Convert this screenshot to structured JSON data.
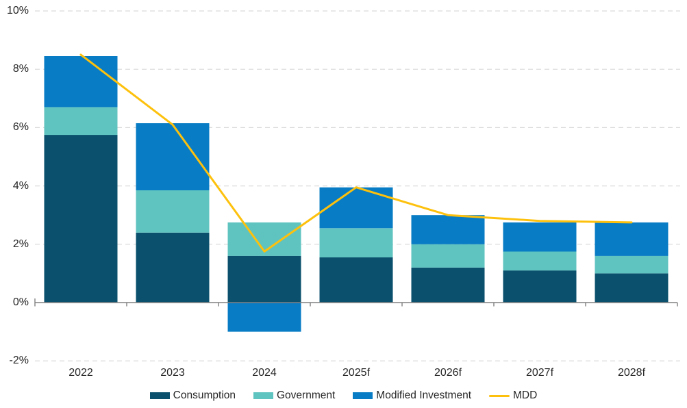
{
  "chart_data": {
    "type": "bar",
    "subtype": "stacked-bars-with-line-overlay",
    "title": "",
    "categories": [
      "2022",
      "2023",
      "2024",
      "2025f",
      "2026f",
      "2027f",
      "2028f"
    ],
    "series": [
      {
        "name": "Consumption",
        "type": "bar",
        "color": "#0B516D",
        "values": [
          5.75,
          2.4,
          1.6,
          1.55,
          1.2,
          1.1,
          1.0
        ]
      },
      {
        "name": "Government",
        "type": "bar",
        "color": "#5FC3C0",
        "values": [
          0.95,
          1.45,
          1.15,
          1.0,
          0.8,
          0.65,
          0.6
        ]
      },
      {
        "name": "Modified Investment",
        "type": "bar",
        "color": "#087CC4",
        "values": [
          1.75,
          2.3,
          -1.0,
          1.4,
          1.0,
          1.0,
          1.15
        ]
      },
      {
        "name": "MDD",
        "type": "line",
        "color": "#FDC10D",
        "values": [
          8.5,
          6.1,
          1.75,
          3.95,
          3.0,
          2.8,
          2.75
        ]
      }
    ],
    "stacked_totals": [
      8.45,
      6.15,
      2.75,
      3.95,
      3.0,
      2.75,
      2.75
    ],
    "y_ticks": [
      10,
      8,
      6,
      4,
      2,
      0,
      -2
    ],
    "y_tick_labels": [
      "10%",
      "8%",
      "6%",
      "4%",
      "2%",
      "0%",
      "-2%"
    ],
    "ylim": [
      -2,
      10
    ],
    "unit": "%",
    "grid": "horizontal-dashed",
    "legend_position": "bottom-center"
  },
  "colors": {
    "gridline": "#D9D9D9",
    "axis": "#808080",
    "text": "#262626",
    "background": "#FFFFFF"
  }
}
